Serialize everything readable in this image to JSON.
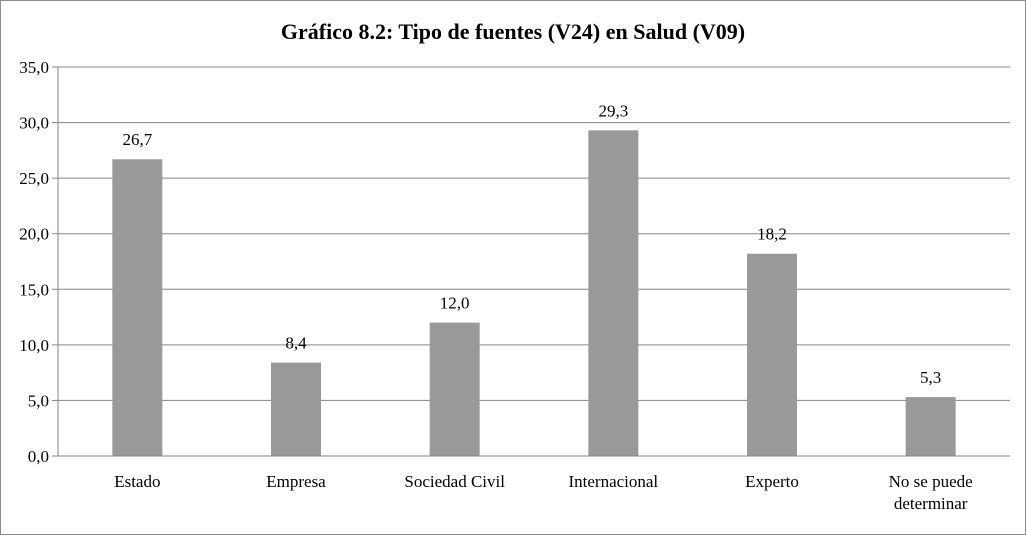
{
  "chart_data": {
    "type": "bar",
    "title": "Gráfico 8.2: Tipo de fuentes (V24) en Salud (V09)",
    "categories": [
      [
        "Estado"
      ],
      [
        "Empresa"
      ],
      [
        "Sociedad Civil"
      ],
      [
        "Internacional"
      ],
      [
        "Experto"
      ],
      [
        "No se puede",
        "determinar"
      ]
    ],
    "values": [
      26.7,
      8.4,
      12.0,
      29.3,
      18.2,
      5.3
    ],
    "value_labels": [
      "26,7",
      "8,4",
      "12,0",
      "29,3",
      "18,2",
      "5,3"
    ],
    "ylim": [
      0,
      35
    ],
    "y_ticks": [
      0,
      5,
      10,
      15,
      20,
      25,
      30,
      35
    ],
    "y_tick_labels": [
      "0,0",
      "5,0",
      "10,0",
      "15,0",
      "20,0",
      "25,0",
      "30,0",
      "35,0"
    ],
    "grid": true,
    "legend": "none",
    "colors": {
      "bar": "#999999",
      "grid": "#868686",
      "axis": "#868686"
    }
  }
}
